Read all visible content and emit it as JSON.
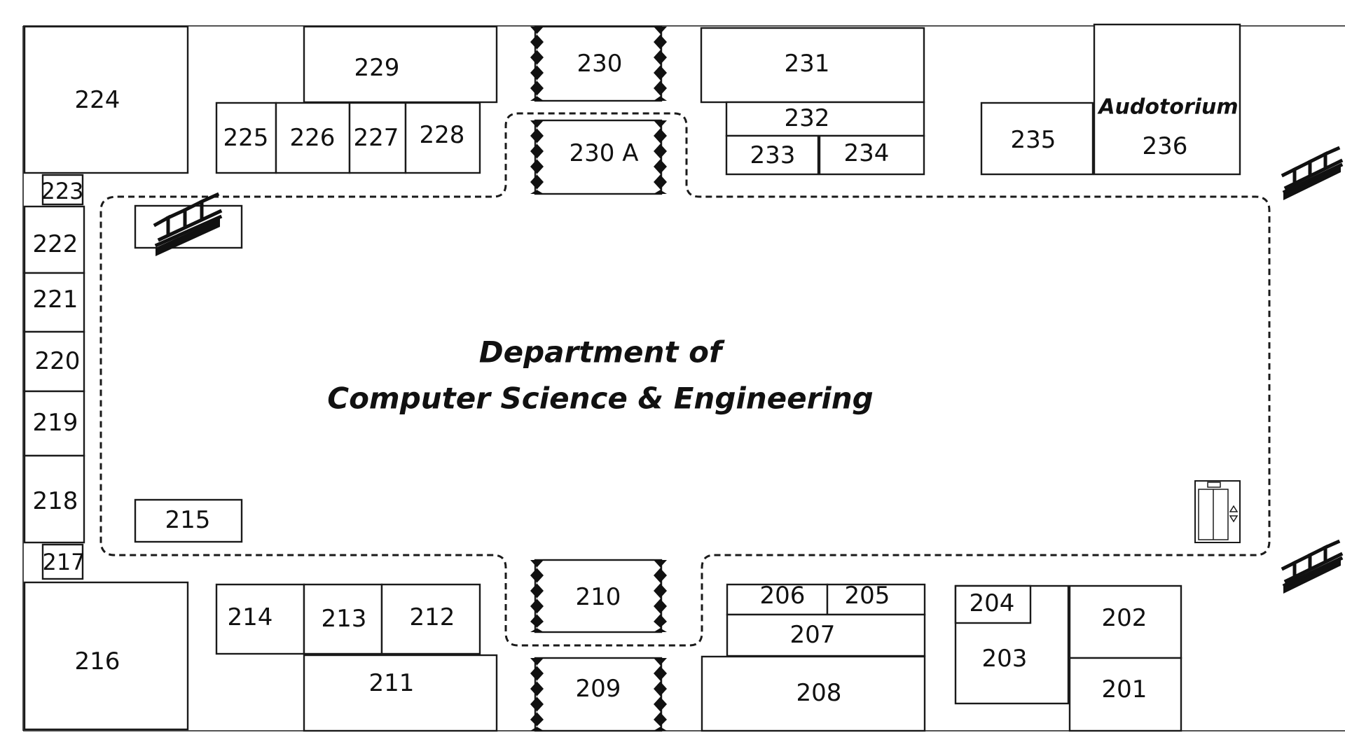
{
  "title_lines": [
    "Department of",
    "Computer Science & Engineering"
  ],
  "auditorium_label": "Audotorium",
  "rooms": {
    "r201": "201",
    "r202": "202",
    "r203": "203",
    "r204": "204",
    "r205": "205",
    "r206": "206",
    "r207": "207",
    "r208": "208",
    "r209": "209",
    "r210": "210",
    "r211": "211",
    "r212": "212",
    "r213": "213",
    "r214": "214",
    "r215": "215",
    "r216": "216",
    "r217": "217",
    "r218": "218",
    "r219": "219",
    "r220": "220",
    "r221": "221",
    "r222": "222",
    "r223": "223",
    "r224": "224",
    "r225": "225",
    "r226": "226",
    "r227": "227",
    "r228": "228",
    "r229": "229",
    "r230": "230",
    "r230a": "230 A",
    "r231": "231",
    "r232": "232",
    "r233": "233",
    "r234": "234",
    "r235": "235",
    "r236": "236"
  },
  "icons": {
    "stairs": "stairs-icon",
    "elevator": "elevator-icon"
  },
  "colors": {
    "line": "#1a1a1a",
    "background": "#ffffff"
  }
}
